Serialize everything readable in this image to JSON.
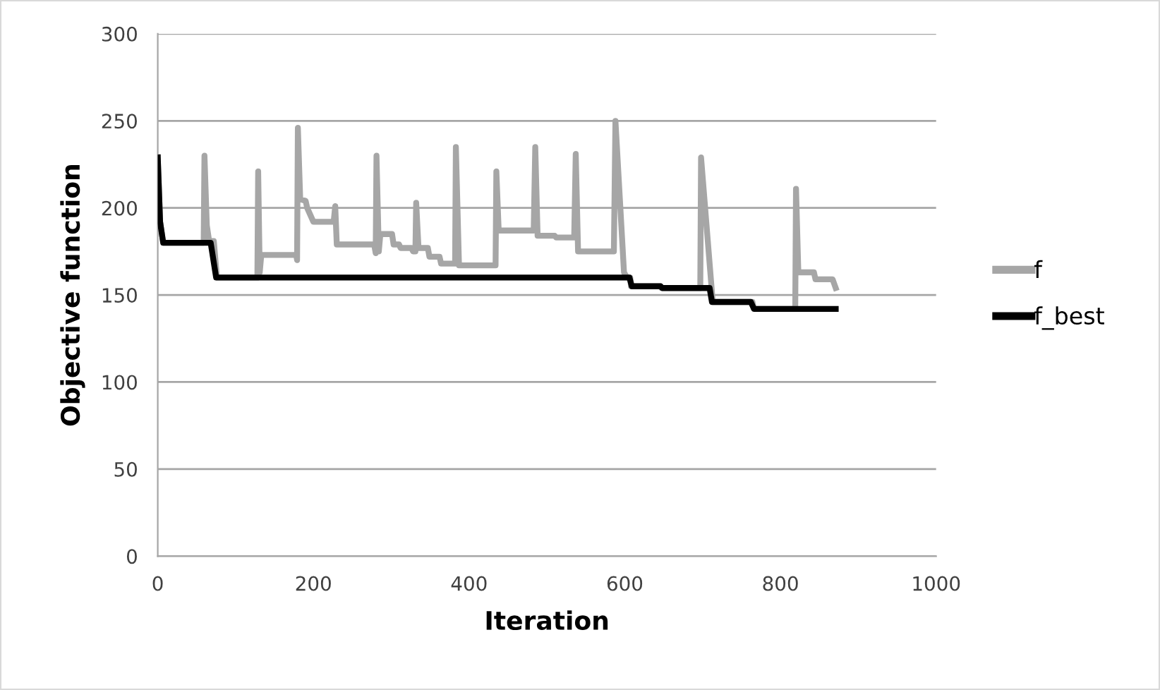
{
  "chart_data": {
    "type": "line",
    "xlabel": "Iteration",
    "ylabel": "Objective function",
    "xlim": [
      0,
      1000
    ],
    "xticks": [
      0,
      200,
      400,
      600,
      800,
      1000
    ],
    "ylim": [
      0,
      300
    ],
    "yticks": [
      0,
      50,
      100,
      150,
      200,
      250,
      300
    ],
    "grid": "y",
    "legend": "right",
    "marker": "none",
    "line_style": "solid",
    "series": [
      {
        "name": "f",
        "color": "#a6a6a6",
        "x": [
          0,
          3,
          7,
          59,
          60,
          63,
          66,
          72,
          76,
          128,
          129,
          131,
          133,
          178,
          179,
          180,
          183,
          190,
          192,
          200,
          226,
          228,
          230,
          278,
          280,
          281,
          284,
          286,
          301,
          303,
          310,
          312,
          326,
          328,
          331,
          332,
          335,
          347,
          349,
          362,
          364,
          382,
          383,
          387,
          434,
          435,
          438,
          483,
          485,
          488,
          510,
          512,
          535,
          537,
          540,
          586,
          588,
          599,
          603,
          607,
          608,
          646,
          647,
          697,
          698,
          713,
          764,
          766,
          819,
          820,
          823,
          843,
          845,
          867,
          871
        ],
        "values": [
          229,
          192,
          180,
          180,
          230,
          190,
          181,
          181,
          160,
          160,
          221,
          163,
          173,
          173,
          170,
          246,
          205,
          204,
          200,
          192,
          192,
          201,
          179,
          179,
          174,
          230,
          175,
          185,
          185,
          179,
          179,
          177,
          177,
          175,
          175,
          203,
          177,
          177,
          172,
          172,
          168,
          168,
          235,
          167,
          167,
          221,
          187,
          187,
          235,
          184,
          184,
          183,
          183,
          231,
          175,
          175,
          250,
          163,
          160,
          160,
          155,
          155,
          154,
          154,
          229,
          146,
          146,
          142,
          142,
          211,
          163,
          163,
          159,
          159,
          154
        ]
      },
      {
        "name": "f_best",
        "color": "#000000",
        "x": [
          0,
          3,
          7,
          68,
          75,
          606,
          609,
          646,
          648,
          709,
          712,
          762,
          766,
          871
        ],
        "values": [
          229,
          192,
          180,
          180,
          160,
          160,
          155,
          155,
          154,
          154,
          146,
          146,
          142,
          142
        ]
      }
    ]
  }
}
